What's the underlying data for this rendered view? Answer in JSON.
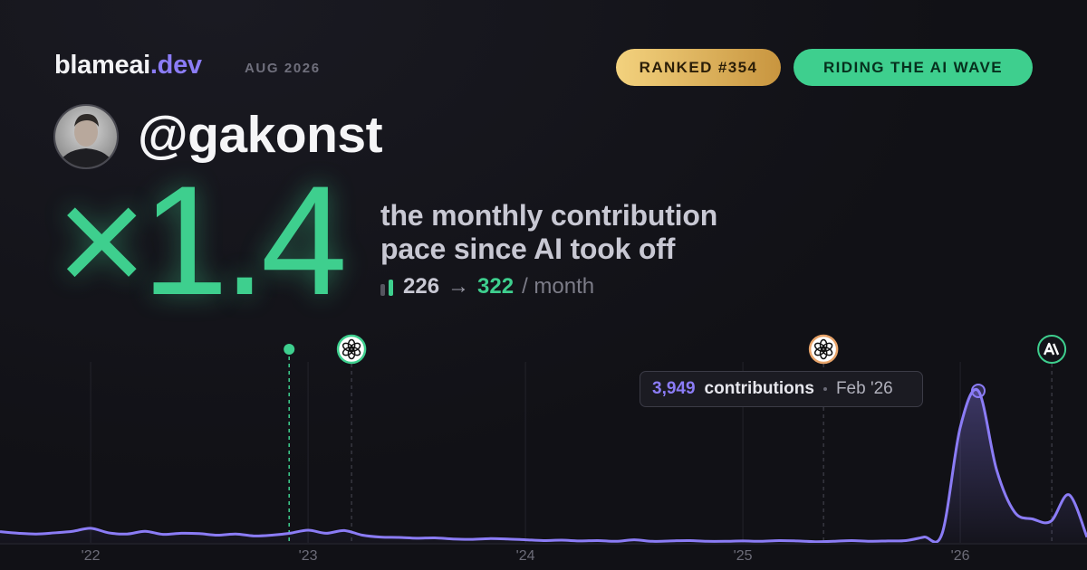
{
  "header": {
    "brand": "blameai",
    "brand_tld": ".dev",
    "period": "AUG 2026",
    "rank_badge": "RANKED #354",
    "status_badge": "RIDING THE AI WAVE",
    "handle": "@gakonst"
  },
  "headline": {
    "multiplier": "×1.4",
    "description": [
      "the monthly contribution",
      "pace since AI took off"
    ],
    "before": 226,
    "arrow": "→",
    "after": 322,
    "unit": "/ month"
  },
  "chart_data": {
    "type": "line",
    "xlim": [
      2021.583,
      2026.583
    ],
    "xticks": [
      {
        "value": 2022,
        "label": "'22"
      },
      {
        "value": 2023,
        "label": "'23"
      },
      {
        "value": 2024,
        "label": "'24"
      },
      {
        "value": 2025,
        "label": "'25"
      },
      {
        "value": 2026,
        "label": "'26"
      }
    ],
    "ylim": [
      0,
      4700
    ],
    "grid": true,
    "series": [
      {
        "color": "#8b7cf6",
        "x": [
          2021.583,
          2021.667,
          2021.75,
          2021.833,
          2021.917,
          2022,
          2022.083,
          2022.167,
          2022.25,
          2022.333,
          2022.417,
          2022.5,
          2022.583,
          2022.667,
          2022.75,
          2022.833,
          2022.917,
          2023,
          2023.083,
          2023.167,
          2023.25,
          2023.333,
          2023.417,
          2023.5,
          2023.583,
          2023.667,
          2023.75,
          2023.833,
          2023.917,
          2024,
          2024.083,
          2024.167,
          2024.25,
          2024.333,
          2024.417,
          2024.5,
          2024.583,
          2024.667,
          2024.75,
          2024.833,
          2024.917,
          2025,
          2025.083,
          2025.167,
          2025.25,
          2025.333,
          2025.417,
          2025.5,
          2025.583,
          2025.667,
          2025.75,
          2025.833,
          2025.917,
          2026,
          2026.083,
          2026.167,
          2026.25,
          2026.333,
          2026.417,
          2026.5,
          2026.583
        ],
        "values": [
          290,
          250,
          230,
          260,
          300,
          380,
          260,
          230,
          300,
          220,
          250,
          240,
          200,
          230,
          180,
          200,
          250,
          330,
          250,
          320,
          200,
          150,
          140,
          120,
          130,
          100,
          90,
          110,
          100,
          80,
          60,
          70,
          50,
          60,
          40,
          80,
          40,
          50,
          60,
          40,
          40,
          50,
          40,
          60,
          50,
          30,
          40,
          60,
          40,
          50,
          60,
          150,
          250,
          3000,
          3949,
          1900,
          800,
          620,
          560,
          1250,
          150
        ],
        "value_labels": [
          null,
          null,
          null,
          null,
          null,
          null,
          null,
          null,
          null,
          null,
          null,
          null,
          null,
          null,
          null,
          null,
          null,
          null,
          null,
          null,
          null,
          null,
          null,
          null,
          null,
          null,
          null,
          null,
          null,
          null,
          null,
          null,
          null,
          null,
          null,
          null,
          null,
          null,
          null,
          null,
          null,
          null,
          null,
          null,
          null,
          null,
          null,
          null,
          null,
          null,
          null,
          null,
          null,
          null,
          "3,949",
          null,
          null,
          null,
          null,
          null,
          null
        ]
      }
    ],
    "tooltip_unit": "contributions",
    "tooltip_date": "Feb '26",
    "events": [
      {
        "x": 2022.913,
        "icon": "dot",
        "color": "#3ecf8e"
      },
      {
        "x": 2023.2,
        "icon": "openai",
        "color": "#3ecf8e"
      },
      {
        "x": 2025.371,
        "icon": "openai",
        "color": "#e8a46a"
      },
      {
        "x": 2026.421,
        "icon": "anthropic",
        "color": "#3ecf8e"
      }
    ]
  }
}
